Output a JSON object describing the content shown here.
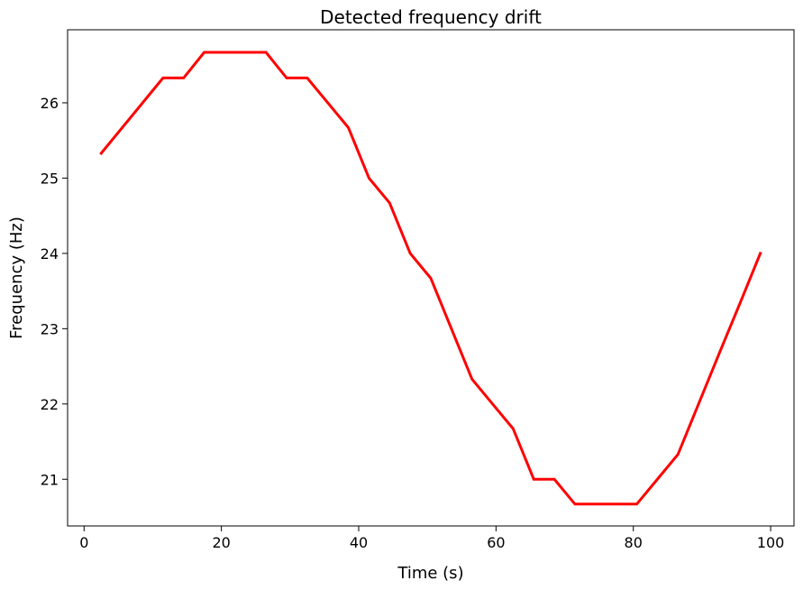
{
  "chart_data": {
    "type": "line",
    "title": "Detected frequency drift",
    "xlabel": "Time (s)",
    "ylabel": "Frequency (Hz)",
    "xlim": [
      -2.4,
      103.4
    ],
    "ylim": [
      20.38,
      26.97
    ],
    "xticks": [
      0,
      20,
      40,
      60,
      80,
      100
    ],
    "yticks": [
      21,
      22,
      23,
      24,
      25,
      26
    ],
    "grid": false,
    "series": [
      {
        "color": "#ff0000",
        "x": [
          2.5,
          11.5,
          14.5,
          17.5,
          20.5,
          23.5,
          26.5,
          29.5,
          32.5,
          35.5,
          38.5,
          41.5,
          44.5,
          47.5,
          50.5,
          53.5,
          56.5,
          59.5,
          62.5,
          65.5,
          68.5,
          71.5,
          74.5,
          77.5,
          80.5,
          83.5,
          86.5,
          89.5,
          92.5,
          95.5,
          98.5
        ],
        "y": [
          25.33,
          26.33,
          26.33,
          26.67,
          26.67,
          26.67,
          26.67,
          26.33,
          26.33,
          26.0,
          25.67,
          25.0,
          24.67,
          24.0,
          23.67,
          23.0,
          22.33,
          22.0,
          21.67,
          21.0,
          21.0,
          20.67,
          20.67,
          20.67,
          20.67,
          21.0,
          21.33,
          22.0,
          22.67,
          23.33,
          24.0
        ]
      }
    ]
  }
}
